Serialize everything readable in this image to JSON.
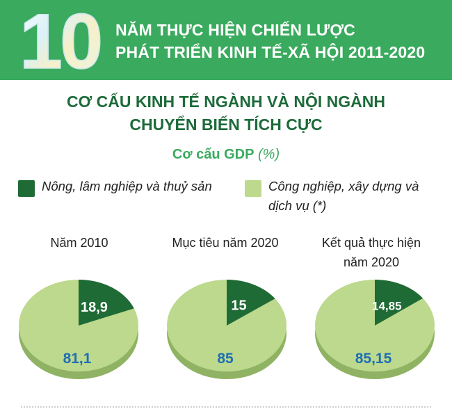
{
  "banner": {
    "number": "10",
    "line1": "NĂM THỰC HIỆN CHIẾN LƯỢC",
    "line2": "PHÁT TRIỂN KINH TẾ-XÃ HỘI 2011-2020"
  },
  "headline": {
    "line1": "CƠ CẤU KINH TẾ NGÀNH VÀ NỘI NGÀNH",
    "line2": "CHUYỂN BIẾN TÍCH CỰC"
  },
  "colors": {
    "banner_green": "#3aaa5e",
    "dark_slice": "#1f6b36",
    "light_slice": "#bcd98e",
    "value_blue": "#1f6fb2"
  },
  "chart_data": {
    "type": "pie",
    "title": "Cơ cấu GDP",
    "unit": "(%)",
    "legend": [
      {
        "label": "Nông, lâm nghiệp và thuỷ sản",
        "color": "#1f6b36"
      },
      {
        "label_line1": "Công nghiệp, xây dựng và",
        "label_line2": "dịch vụ (*)",
        "color": "#bcd98e"
      }
    ],
    "pies": [
      {
        "label_line1": "Năm 2010",
        "label_line2": "",
        "slices": [
          {
            "name": "Nông, lâm nghiệp và thuỷ sản",
            "value": 18.9,
            "text": "18,9"
          },
          {
            "name": "Công nghiệp, xây dựng và dịch vụ",
            "value": 81.1,
            "text": "81,1"
          }
        ]
      },
      {
        "label_line1": "Mục tiêu năm 2020",
        "label_line2": "",
        "slices": [
          {
            "name": "Nông, lâm nghiệp và thuỷ sản",
            "value": 15,
            "text": "15"
          },
          {
            "name": "Công nghiệp, xây dựng và dịch vụ",
            "value": 85,
            "text": "85"
          }
        ]
      },
      {
        "label_line1": "Kết quả thực hiện",
        "label_line2": "năm 2020",
        "slices": [
          {
            "name": "Nông, lâm nghiệp và thuỷ sản",
            "value": 14.85,
            "text": "14,85"
          },
          {
            "name": "Công nghiệp, xây dựng và dịch vụ",
            "value": 85.15,
            "text": "85,15"
          }
        ]
      }
    ]
  }
}
